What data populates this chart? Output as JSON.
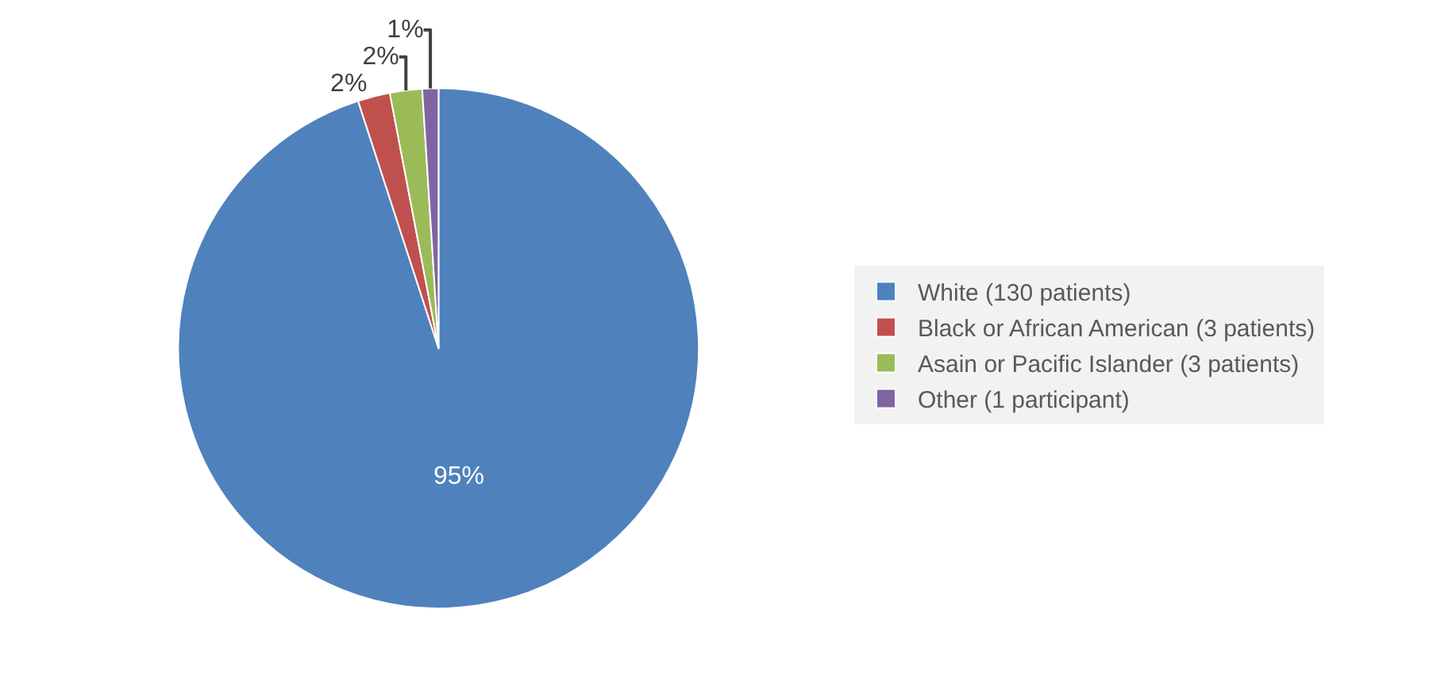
{
  "chart_data": {
    "type": "pie",
    "categories": [
      "White (130 patients)",
      "Black or African American (3 patients)",
      "Asain or Pacific Islander (3 patients)",
      "Other (1 participant)"
    ],
    "values": [
      95,
      2,
      2,
      1
    ],
    "colors": [
      "#4f81bd",
      "#c0504d",
      "#9bbb59",
      "#8064a2"
    ],
    "value_labels": [
      "95%",
      "2%",
      "2%",
      "1%"
    ],
    "legend": "right"
  }
}
